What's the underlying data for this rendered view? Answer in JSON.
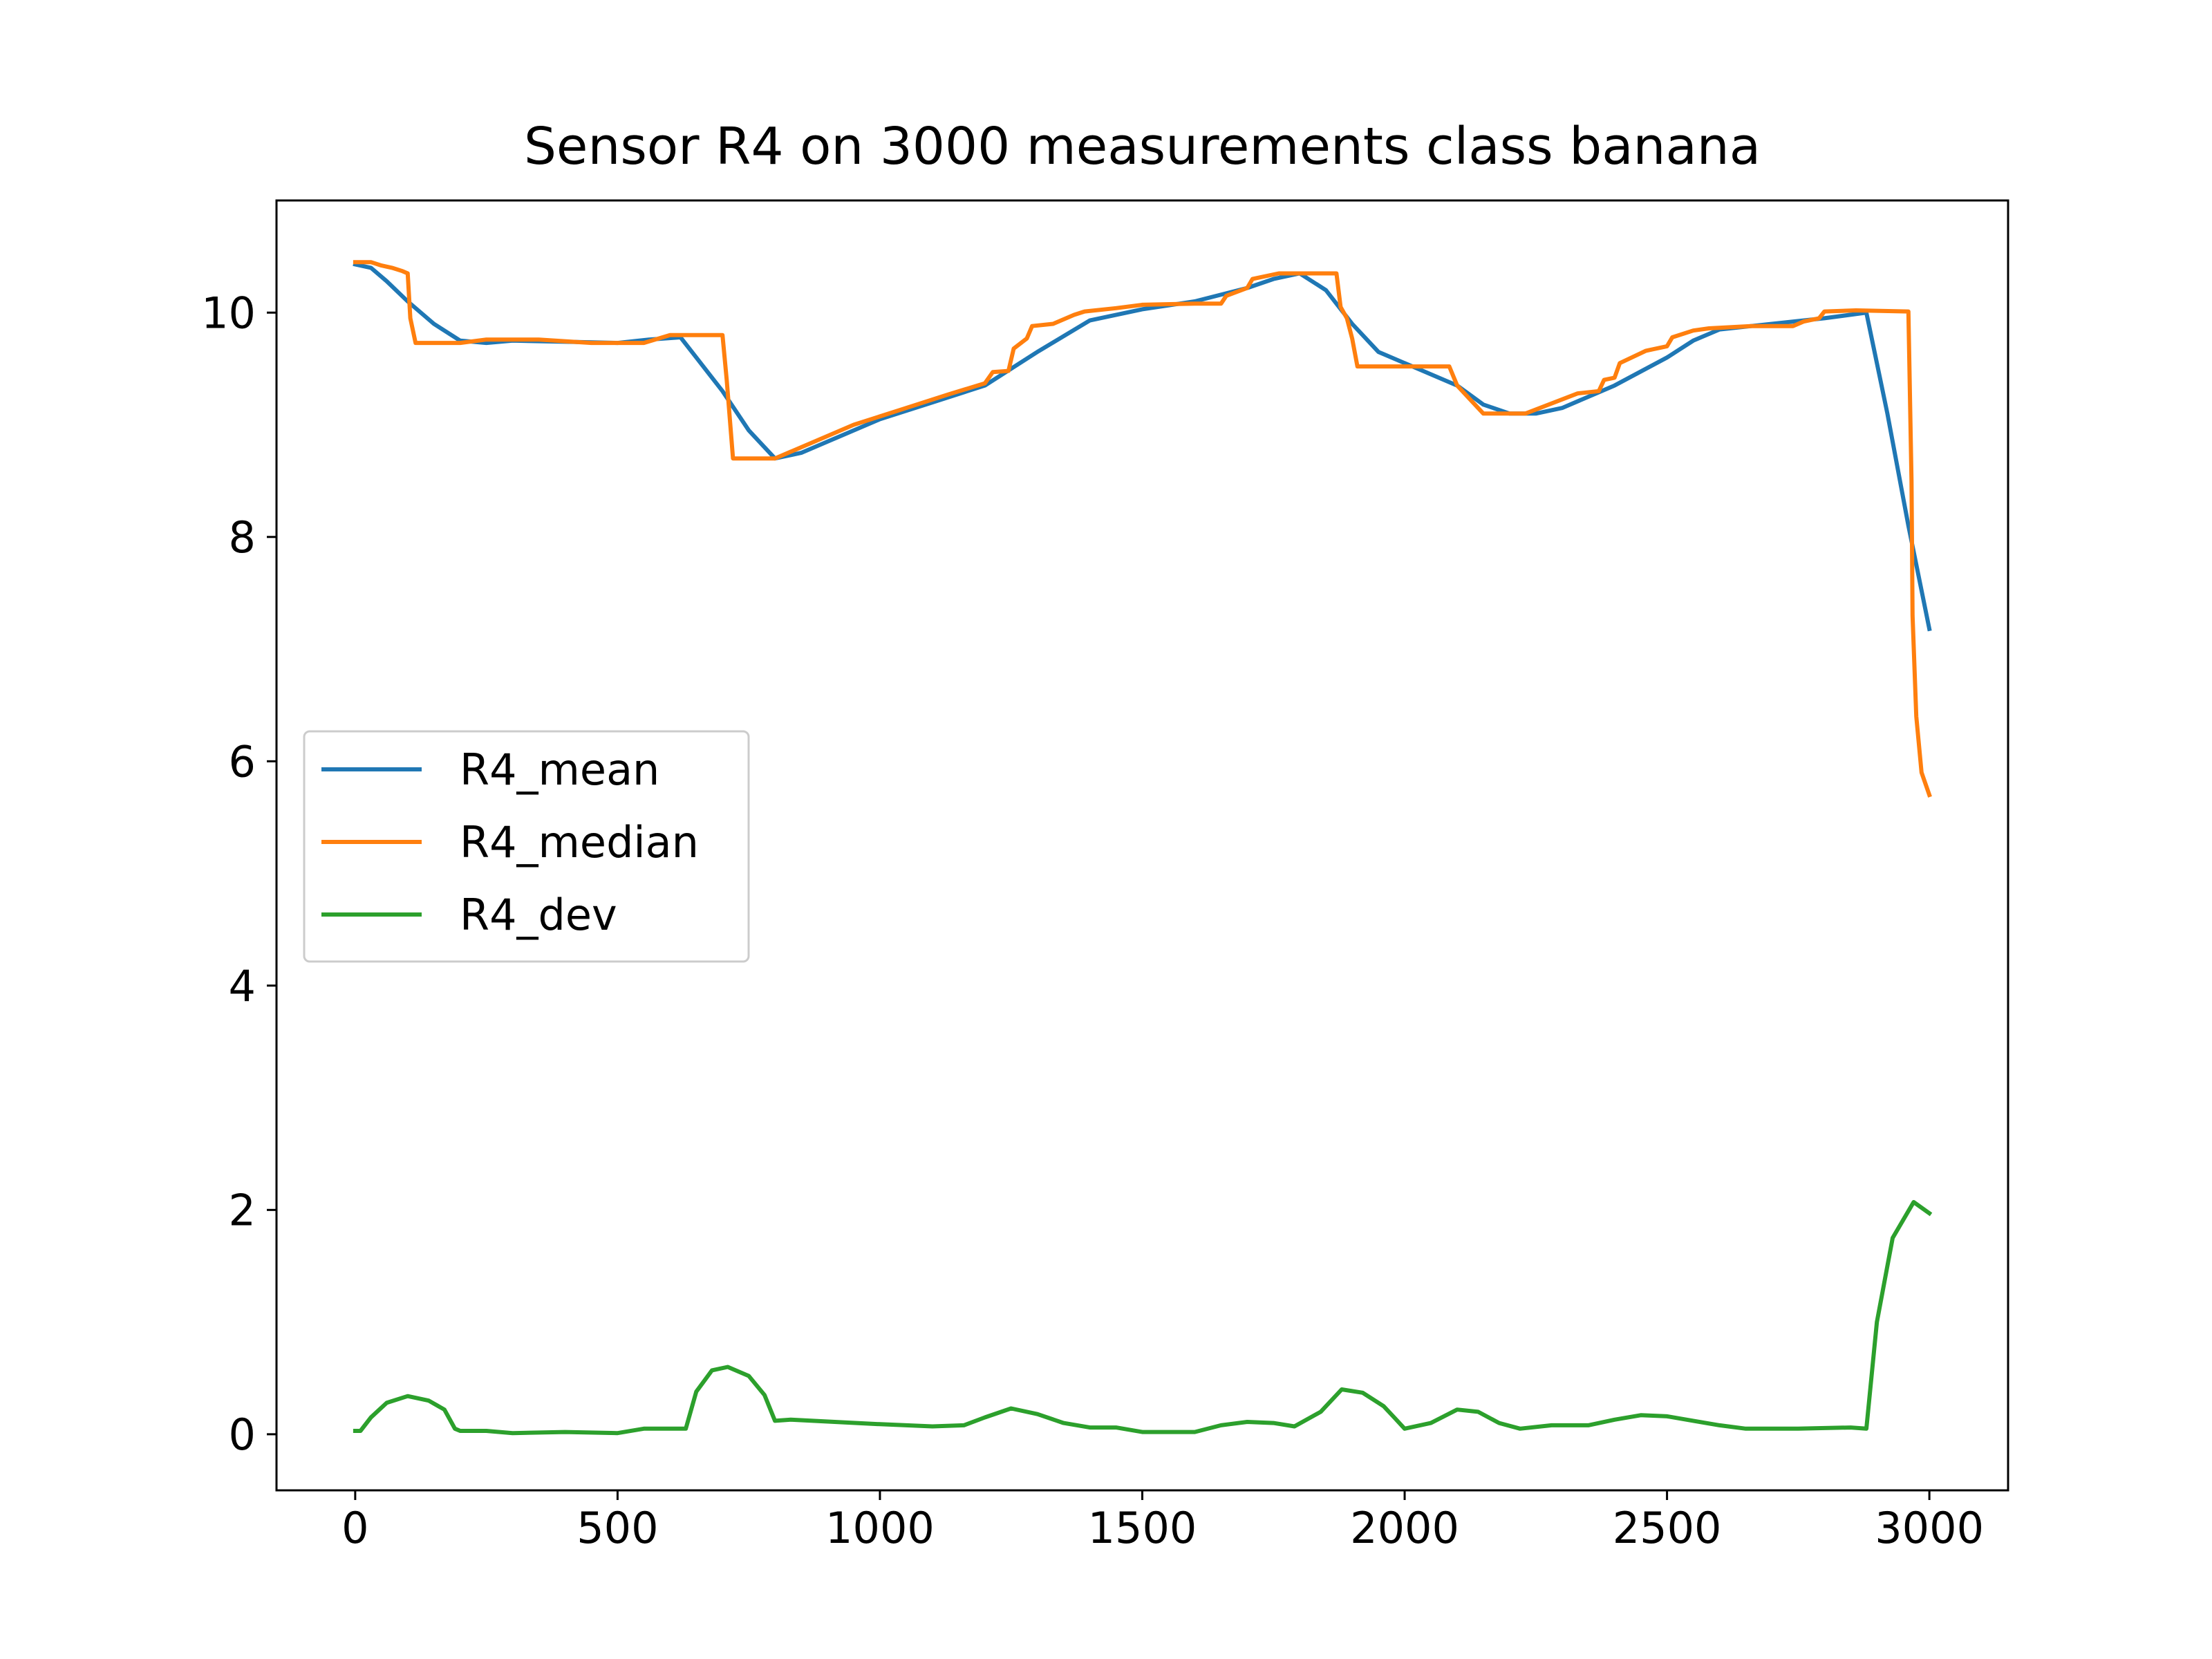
{
  "chart_data": {
    "type": "line",
    "title": "Sensor R4 on 3000 measurements class banana",
    "xlabel": "",
    "ylabel": "",
    "xlim": [
      -150,
      3150
    ],
    "ylim": [
      -0.5,
      11.0
    ],
    "xticks": [
      0,
      500,
      1000,
      1500,
      2000,
      2500,
      3000
    ],
    "yticks": [
      0,
      2,
      4,
      6,
      8,
      10
    ],
    "grid": false,
    "legend_position": "center-left",
    "series": [
      {
        "name": "R4_mean",
        "color": "#1f77b4",
        "points": [
          [
            0,
            10.43
          ],
          [
            30,
            10.4
          ],
          [
            60,
            10.28
          ],
          [
            100,
            10.1
          ],
          [
            150,
            9.9
          ],
          [
            200,
            9.75
          ],
          [
            250,
            9.73
          ],
          [
            300,
            9.75
          ],
          [
            400,
            9.74
          ],
          [
            500,
            9.73
          ],
          [
            560,
            9.76
          ],
          [
            620,
            9.78
          ],
          [
            650,
            9.6
          ],
          [
            700,
            9.3
          ],
          [
            750,
            8.95
          ],
          [
            800,
            8.7
          ],
          [
            850,
            8.75
          ],
          [
            900,
            8.85
          ],
          [
            1000,
            9.05
          ],
          [
            1100,
            9.2
          ],
          [
            1200,
            9.35
          ],
          [
            1300,
            9.65
          ],
          [
            1400,
            9.93
          ],
          [
            1500,
            10.03
          ],
          [
            1600,
            10.1
          ],
          [
            1700,
            10.22
          ],
          [
            1750,
            10.3
          ],
          [
            1800,
            10.35
          ],
          [
            1850,
            10.2
          ],
          [
            1900,
            9.9
          ],
          [
            1950,
            9.65
          ],
          [
            2000,
            9.55
          ],
          [
            2050,
            9.45
          ],
          [
            2100,
            9.35
          ],
          [
            2150,
            9.18
          ],
          [
            2200,
            9.1
          ],
          [
            2250,
            9.1
          ],
          [
            2300,
            9.15
          ],
          [
            2400,
            9.35
          ],
          [
            2500,
            9.6
          ],
          [
            2550,
            9.75
          ],
          [
            2600,
            9.85
          ],
          [
            2700,
            9.9
          ],
          [
            2800,
            9.95
          ],
          [
            2880,
            10.0
          ],
          [
            2920,
            9.1
          ],
          [
            2960,
            8.1
          ],
          [
            3000,
            7.18
          ]
        ]
      },
      {
        "name": "R4_median",
        "color": "#ff7f0e",
        "points": [
          [
            0,
            10.45
          ],
          [
            30,
            10.45
          ],
          [
            50,
            10.42
          ],
          [
            70,
            10.4
          ],
          [
            90,
            10.37
          ],
          [
            100,
            10.35
          ],
          [
            105,
            9.95
          ],
          [
            115,
            9.73
          ],
          [
            200,
            9.73
          ],
          [
            250,
            9.76
          ],
          [
            350,
            9.76
          ],
          [
            450,
            9.73
          ],
          [
            550,
            9.73
          ],
          [
            600,
            9.8
          ],
          [
            700,
            9.8
          ],
          [
            708,
            9.4
          ],
          [
            720,
            8.7
          ],
          [
            800,
            8.7
          ],
          [
            850,
            8.8
          ],
          [
            950,
            9.0
          ],
          [
            1050,
            9.15
          ],
          [
            1130,
            9.27
          ],
          [
            1200,
            9.37
          ],
          [
            1215,
            9.47
          ],
          [
            1245,
            9.48
          ],
          [
            1255,
            9.68
          ],
          [
            1280,
            9.77
          ],
          [
            1290,
            9.88
          ],
          [
            1330,
            9.9
          ],
          [
            1370,
            9.98
          ],
          [
            1390,
            10.01
          ],
          [
            1450,
            10.04
          ],
          [
            1500,
            10.07
          ],
          [
            1600,
            10.08
          ],
          [
            1650,
            10.08
          ],
          [
            1660,
            10.15
          ],
          [
            1700,
            10.22
          ],
          [
            1710,
            10.3
          ],
          [
            1760,
            10.35
          ],
          [
            1870,
            10.35
          ],
          [
            1878,
            10.05
          ],
          [
            1890,
            9.95
          ],
          [
            1900,
            9.77
          ],
          [
            1910,
            9.52
          ],
          [
            1990,
            9.52
          ],
          [
            2085,
            9.52
          ],
          [
            2100,
            9.35
          ],
          [
            2130,
            9.2
          ],
          [
            2150,
            9.1
          ],
          [
            2230,
            9.1
          ],
          [
            2330,
            9.28
          ],
          [
            2370,
            9.3
          ],
          [
            2380,
            9.4
          ],
          [
            2400,
            9.42
          ],
          [
            2410,
            9.55
          ],
          [
            2460,
            9.66
          ],
          [
            2500,
            9.7
          ],
          [
            2510,
            9.78
          ],
          [
            2550,
            9.84
          ],
          [
            2580,
            9.86
          ],
          [
            2620,
            9.87
          ],
          [
            2660,
            9.88
          ],
          [
            2740,
            9.88
          ],
          [
            2760,
            9.92
          ],
          [
            2790,
            9.95
          ],
          [
            2800,
            10.01
          ],
          [
            2860,
            10.02
          ],
          [
            2960,
            10.01
          ],
          [
            2966,
            8.5
          ],
          [
            2968,
            7.3
          ],
          [
            2975,
            6.4
          ],
          [
            2985,
            5.9
          ],
          [
            3000,
            5.7
          ]
        ]
      },
      {
        "name": "R4_dev",
        "color": "#2ca02c",
        "points": [
          [
            0,
            0.03
          ],
          [
            10,
            0.03
          ],
          [
            30,
            0.15
          ],
          [
            60,
            0.28
          ],
          [
            100,
            0.34
          ],
          [
            140,
            0.3
          ],
          [
            170,
            0.22
          ],
          [
            190,
            0.05
          ],
          [
            200,
            0.03
          ],
          [
            250,
            0.03
          ],
          [
            300,
            0.01
          ],
          [
            400,
            0.02
          ],
          [
            500,
            0.01
          ],
          [
            550,
            0.05
          ],
          [
            600,
            0.05
          ],
          [
            630,
            0.05
          ],
          [
            650,
            0.38
          ],
          [
            680,
            0.57
          ],
          [
            710,
            0.6
          ],
          [
            750,
            0.52
          ],
          [
            780,
            0.35
          ],
          [
            800,
            0.12
          ],
          [
            830,
            0.13
          ],
          [
            1000,
            0.09
          ],
          [
            1100,
            0.07
          ],
          [
            1160,
            0.08
          ],
          [
            1200,
            0.15
          ],
          [
            1250,
            0.23
          ],
          [
            1300,
            0.18
          ],
          [
            1350,
            0.1
          ],
          [
            1400,
            0.06
          ],
          [
            1450,
            0.06
          ],
          [
            1500,
            0.02
          ],
          [
            1600,
            0.02
          ],
          [
            1650,
            0.08
          ],
          [
            1700,
            0.11
          ],
          [
            1750,
            0.1
          ],
          [
            1790,
            0.07
          ],
          [
            1840,
            0.2
          ],
          [
            1880,
            0.4
          ],
          [
            1920,
            0.37
          ],
          [
            1960,
            0.25
          ],
          [
            1980,
            0.15
          ],
          [
            2000,
            0.05
          ],
          [
            2050,
            0.1
          ],
          [
            2100,
            0.22
          ],
          [
            2140,
            0.2
          ],
          [
            2180,
            0.1
          ],
          [
            2220,
            0.05
          ],
          [
            2280,
            0.08
          ],
          [
            2350,
            0.08
          ],
          [
            2400,
            0.13
          ],
          [
            2450,
            0.17
          ],
          [
            2500,
            0.16
          ],
          [
            2550,
            0.12
          ],
          [
            2600,
            0.08
          ],
          [
            2650,
            0.05
          ],
          [
            2700,
            0.05
          ],
          [
            2750,
            0.05
          ],
          [
            2850,
            0.06
          ],
          [
            2880,
            0.05
          ],
          [
            2900,
            1.0
          ],
          [
            2930,
            1.75
          ],
          [
            2970,
            2.07
          ],
          [
            3000,
            1.97
          ]
        ]
      }
    ]
  }
}
